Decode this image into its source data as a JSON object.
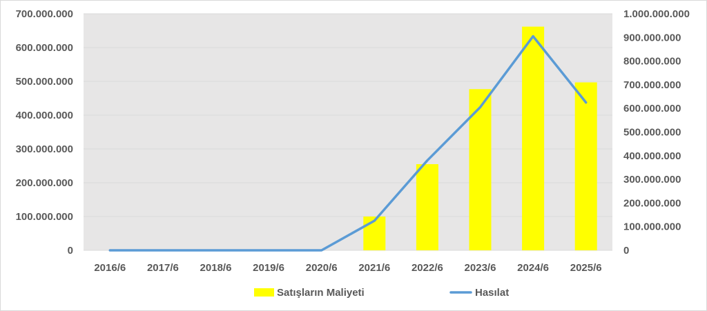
{
  "chart_data": {
    "type": "bar",
    "title": "",
    "categories": [
      "2016/6",
      "2017/6",
      "2018/6",
      "2019/6",
      "2020/6",
      "2021/6",
      "2022/6",
      "2023/6",
      "2024/6",
      "2025/6"
    ],
    "series": [
      {
        "name": "Satışların Maliyeti",
        "type": "bar",
        "axis": "left",
        "color": "#FFFF00",
        "values": [
          0,
          0,
          0,
          0,
          0,
          100000000,
          255000000,
          477000000,
          662000000,
          497000000
        ]
      },
      {
        "name": "Hasılat",
        "type": "line",
        "axis": "right",
        "color": "#5B9BD5",
        "values": [
          0,
          0,
          0,
          0,
          0,
          125000000,
          380000000,
          605000000,
          905000000,
          625000000
        ]
      }
    ],
    "y_left": {
      "ylim": [
        0,
        700000000
      ],
      "ticks": [
        "0",
        "100.000.000",
        "200.000.000",
        "300.000.000",
        "400.000.000",
        "500.000.000",
        "600.000.000",
        "700.000.000"
      ]
    },
    "y_right": {
      "ylim": [
        0,
        1000000000
      ],
      "ticks": [
        "0",
        "100.000.000",
        "200.000.000",
        "300.000.000",
        "400.000.000",
        "500.000.000",
        "600.000.000",
        "700.000.000",
        "800.000.000",
        "900.000.000",
        "1.000.000.000"
      ]
    },
    "grid": true,
    "plot_background": "#E7E6E6",
    "legend": {
      "position": "bottom",
      "items": [
        "Satışların Maliyeti",
        "Hasılat"
      ]
    }
  }
}
